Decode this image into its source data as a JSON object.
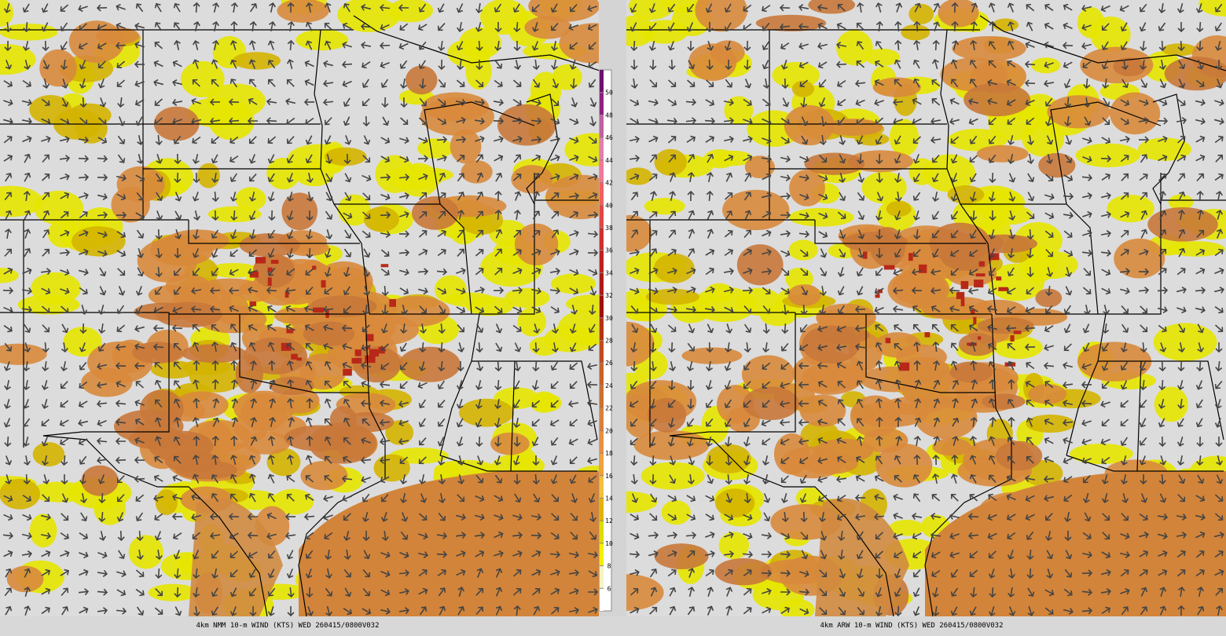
{
  "panels": [
    {
      "caption": "4km NMM 10-m WIND (KTS) WED 260415/0800V032"
    },
    {
      "caption": "4km ARW 10-m WIND (KTS) WED 260415/0800V032"
    }
  ],
  "colorbar": {
    "labels": [
      6,
      8,
      10,
      12,
      14,
      16,
      18,
      20,
      22,
      24,
      26,
      28,
      30,
      32,
      34,
      36,
      38,
      40,
      42,
      44,
      46,
      48,
      50
    ],
    "colors": [
      "#ffffff",
      "#f4f4c8",
      "#f0f000",
      "#dcdc00",
      "#e0b400",
      "#f0c040",
      "#f0a040",
      "#e89040",
      "#d8803c",
      "#cc7030",
      "#c86428",
      "#c04c20",
      "#b83018",
      "#a01010",
      "#b01818",
      "#c02020",
      "#d03030",
      "#e04848",
      "#f06060",
      "#f07898",
      "#e080b0",
      "#c060a0",
      "#902080",
      "#701070"
    ]
  }
}
